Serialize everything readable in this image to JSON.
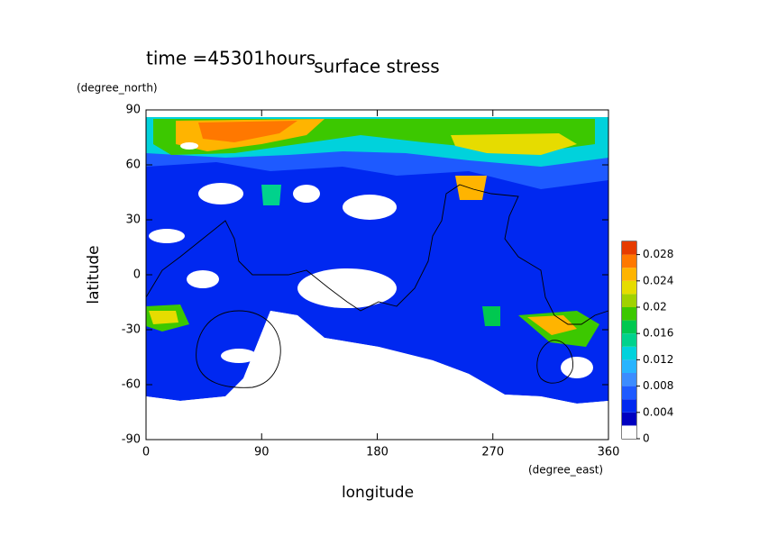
{
  "chart_data": {
    "type": "contour",
    "title": "surface stress",
    "time_label": "time =45301hours",
    "x_label": "longitude",
    "x_unit": "(degree_east)",
    "y_label": "latitude",
    "y_unit": "(degree_north)",
    "xlim": [
      0,
      360
    ],
    "xticks": [
      0,
      90,
      180,
      270,
      360
    ],
    "ylim": [
      -90,
      90
    ],
    "yticks": [
      -90,
      -60,
      -30,
      0,
      30,
      60,
      90
    ],
    "colorbar": {
      "levels": [
        0,
        0.002,
        0.004,
        0.006,
        0.008,
        0.01,
        0.012,
        0.014,
        0.016,
        0.018,
        0.02,
        0.022,
        0.024,
        0.026,
        0.028,
        0.03
      ],
      "ticks": [
        0,
        0.004,
        0.008,
        0.012,
        0.016,
        0.02,
        0.024,
        0.028
      ],
      "colors": [
        "#ffffff",
        "#0000c0",
        "#0028f0",
        "#1e5aff",
        "#3c8cff",
        "#28b4ff",
        "#00d2dc",
        "#00d28c",
        "#00c850",
        "#3cc800",
        "#a0d200",
        "#e6dc00",
        "#ffb400",
        "#ff7800",
        "#e63c00"
      ]
    }
  }
}
